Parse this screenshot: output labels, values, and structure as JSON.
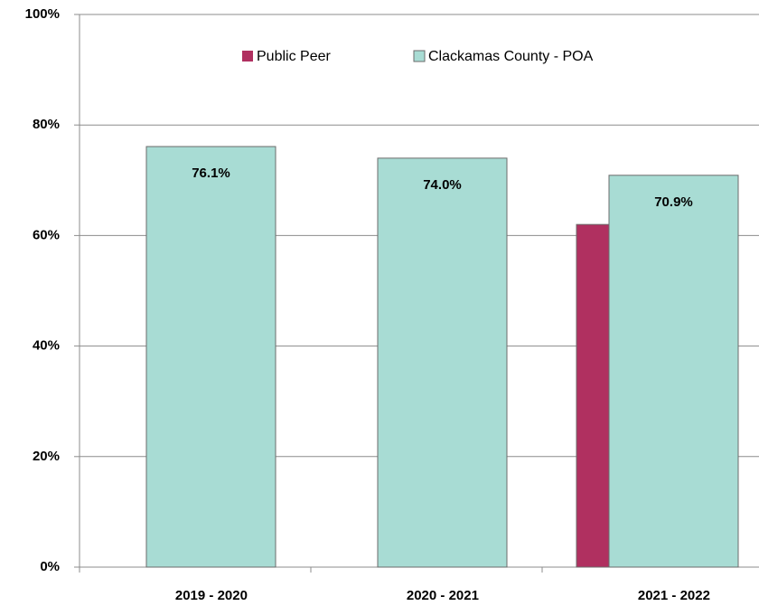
{
  "chart_data": {
    "type": "bar",
    "categories": [
      "2019 - 2020",
      "2020 - 2021",
      "2021 - 2022"
    ],
    "series": [
      {
        "name": "Public Peer",
        "color": "#b03060",
        "values": [
          null,
          null,
          62
        ]
      },
      {
        "name": "Clackamas County - POA",
        "color": "#a8dcd4",
        "values": [
          76.1,
          74.0,
          70.9
        ],
        "value_labels": [
          "76.1%",
          "74.0%",
          "70.9%"
        ]
      }
    ],
    "ylim": [
      0,
      100
    ],
    "yticks": [
      {
        "value": 0,
        "label": "0%"
      },
      {
        "value": 20,
        "label": "20%"
      },
      {
        "value": 40,
        "label": "40%"
      },
      {
        "value": 60,
        "label": "60%"
      },
      {
        "value": 80,
        "label": "80%"
      },
      {
        "value": 100,
        "label": "100%"
      }
    ],
    "grid": true,
    "legend": "top"
  }
}
